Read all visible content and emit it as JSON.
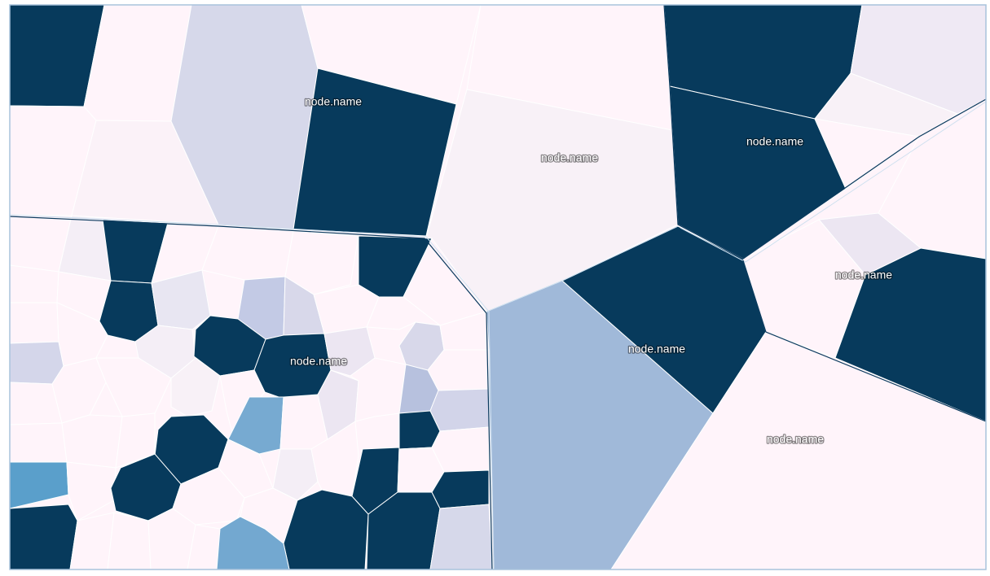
{
  "chart_data": {
    "type": "voronoi-treemap",
    "title": "",
    "color_scale": [
      "#fff4fa",
      "#f4eef6",
      "#e8e6f2",
      "#d4d6ea",
      "#c3cae5",
      "#a6bbd9",
      "#9fb9d9",
      "#77aad1",
      "#5a9fcb",
      "#073a5c"
    ],
    "labels": [
      {
        "id": "lbl-1",
        "text": "node.name"
      },
      {
        "id": "lbl-2",
        "text": "node.name"
      },
      {
        "id": "lbl-3",
        "text": "node.name"
      },
      {
        "id": "lbl-4",
        "text": "node.name"
      },
      {
        "id": "lbl-5",
        "text": "node.name"
      },
      {
        "id": "lbl-6",
        "text": "node.name"
      },
      {
        "id": "lbl-7",
        "text": "node.name"
      }
    ]
  }
}
